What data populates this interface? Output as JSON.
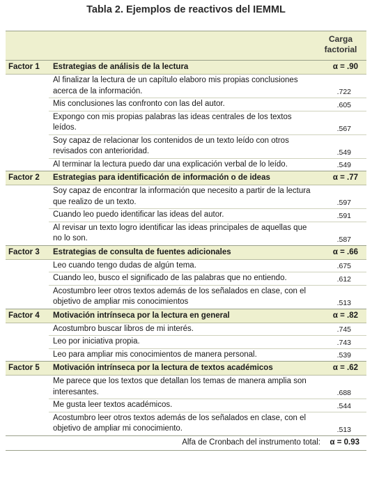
{
  "title": "Tabla 2. Ejemplos de reactivos del IEMML",
  "header": {
    "carga_line1": "Carga",
    "carga_line2": "factorial"
  },
  "factors": [
    {
      "label": "Factor 1",
      "name": "Estrategias de análisis de la lectura",
      "alpha": "α = .90",
      "items": [
        {
          "text": "Al finalizar la lectura de un capítulo elaboro mis propias conclusiones acerca de la información.",
          "loading": ".722"
        },
        {
          "text": "Mis conclusiones las confronto con las del autor.",
          "loading": ".605"
        },
        {
          "text": "Expongo con mis propias palabras las ideas centrales de los textos leídos.",
          "loading": ".567"
        },
        {
          "text": "Soy capaz de relacionar los contenidos de un texto leído con otros revisados con anterioridad.",
          "loading": ".549"
        },
        {
          "text": "Al terminar la lectura puedo dar una explicación verbal de lo leído.",
          "loading": ".549"
        }
      ]
    },
    {
      "label": "Factor 2",
      "name": "Estrategias para identificación de información o de ideas",
      "alpha": "α = .77",
      "items": [
        {
          "text": "Soy capaz de encontrar la información que necesito a partir de la lectura que realizo de un texto.",
          "loading": ".597"
        },
        {
          "text": "Cuando leo puedo identificar las ideas del autor.",
          "loading": ".591"
        },
        {
          "text": "Al revisar un texto logro identificar las ideas principales de aquellas que no lo son.",
          "loading": ".587"
        }
      ]
    },
    {
      "label": "Factor 3",
      "name": "Estrategias de consulta de fuentes adicionales",
      "alpha": "α = .66",
      "items": [
        {
          "text": "Leo cuando tengo dudas de algún tema.",
          "loading": ".675"
        },
        {
          "text": "Cuando leo, busco el significado de las palabras que no entiendo.",
          "loading": ".612"
        },
        {
          "text": "Acostumbro leer otros textos además de los señalados en clase, con el objetivo de ampliar mis conocimientos",
          "loading": ".513"
        }
      ]
    },
    {
      "label": "Factor 4",
      "name": "Motivación intrínseca por la lectura en general",
      "alpha": "α = .82",
      "items": [
        {
          "text": "Acostumbro buscar libros de mi interés.",
          "loading": ".745"
        },
        {
          "text": "Leo por iniciativa propia.",
          "loading": ".743"
        },
        {
          "text": "Leo para ampliar mis conocimientos de manera personal.",
          "loading": ".539"
        }
      ]
    },
    {
      "label": "Factor 5",
      "name": "Motivación intrínseca por la lectura de textos académicos",
      "alpha": "α = .62",
      "items": [
        {
          "text": "Me parece que los textos que detallan los temas de manera amplia son interesantes.",
          "loading": ".688"
        },
        {
          "text": "Me gusta leer textos académicos.",
          "loading": ".544"
        },
        {
          "text": "Acostumbro leer otros textos además de los señalados en clase, con el objetivo de ampliar mi conocimiento.",
          "loading": ".513"
        }
      ]
    }
  ],
  "total": {
    "label": "Alfa de Cronbach del instrumento total:",
    "value": "α = 0.93"
  }
}
